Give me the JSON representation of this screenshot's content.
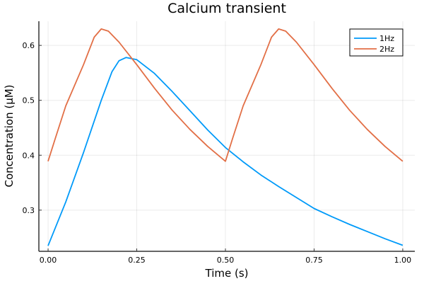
{
  "chart_data": {
    "type": "line",
    "title": "Calcium transient",
    "xlabel": "Time (s)",
    "ylabel": "Concentration (μM)",
    "xlim": [
      -0.026,
      1.034
    ],
    "ylim": [
      0.225,
      0.644
    ],
    "xticks": [
      0,
      0.25,
      0.5,
      0.75,
      1.0
    ],
    "xtick_labels": [
      "0.00",
      "0.25",
      "0.50",
      "0.75",
      "1.00"
    ],
    "yticks": [
      0.3,
      0.4,
      0.5,
      0.6
    ],
    "ytick_labels": [
      "0.3",
      "0.4",
      "0.5",
      "0.6"
    ],
    "grid": true,
    "legend_position": "top-right",
    "series": [
      {
        "name": "1Hz",
        "color": "#009af9",
        "x": [
          0,
          0.05,
          0.1,
          0.15,
          0.18,
          0.2,
          0.22,
          0.25,
          0.3,
          0.35,
          0.4,
          0.45,
          0.5,
          0.55,
          0.6,
          0.65,
          0.7,
          0.75,
          0.8,
          0.85,
          0.9,
          0.95,
          1.0
        ],
        "y": [
          0.235,
          0.315,
          0.405,
          0.5,
          0.552,
          0.572,
          0.578,
          0.574,
          0.549,
          0.516,
          0.481,
          0.446,
          0.414,
          0.388,
          0.364,
          0.343,
          0.323,
          0.303,
          0.288,
          0.274,
          0.261,
          0.248,
          0.236
        ]
      },
      {
        "name": "2Hz",
        "color": "#e26f46",
        "x": [
          0,
          0.02,
          0.05,
          0.1,
          0.13,
          0.15,
          0.17,
          0.2,
          0.25,
          0.3,
          0.35,
          0.4,
          0.45,
          0.5,
          0.52,
          0.55,
          0.6,
          0.63,
          0.65,
          0.67,
          0.7,
          0.75,
          0.8,
          0.85,
          0.9,
          0.95,
          1.0
        ],
        "y": [
          0.389,
          0.43,
          0.49,
          0.565,
          0.615,
          0.63,
          0.626,
          0.606,
          0.565,
          0.522,
          0.482,
          0.447,
          0.416,
          0.389,
          0.43,
          0.49,
          0.565,
          0.615,
          0.63,
          0.626,
          0.606,
          0.565,
          0.522,
          0.482,
          0.447,
          0.416,
          0.389
        ]
      }
    ]
  }
}
